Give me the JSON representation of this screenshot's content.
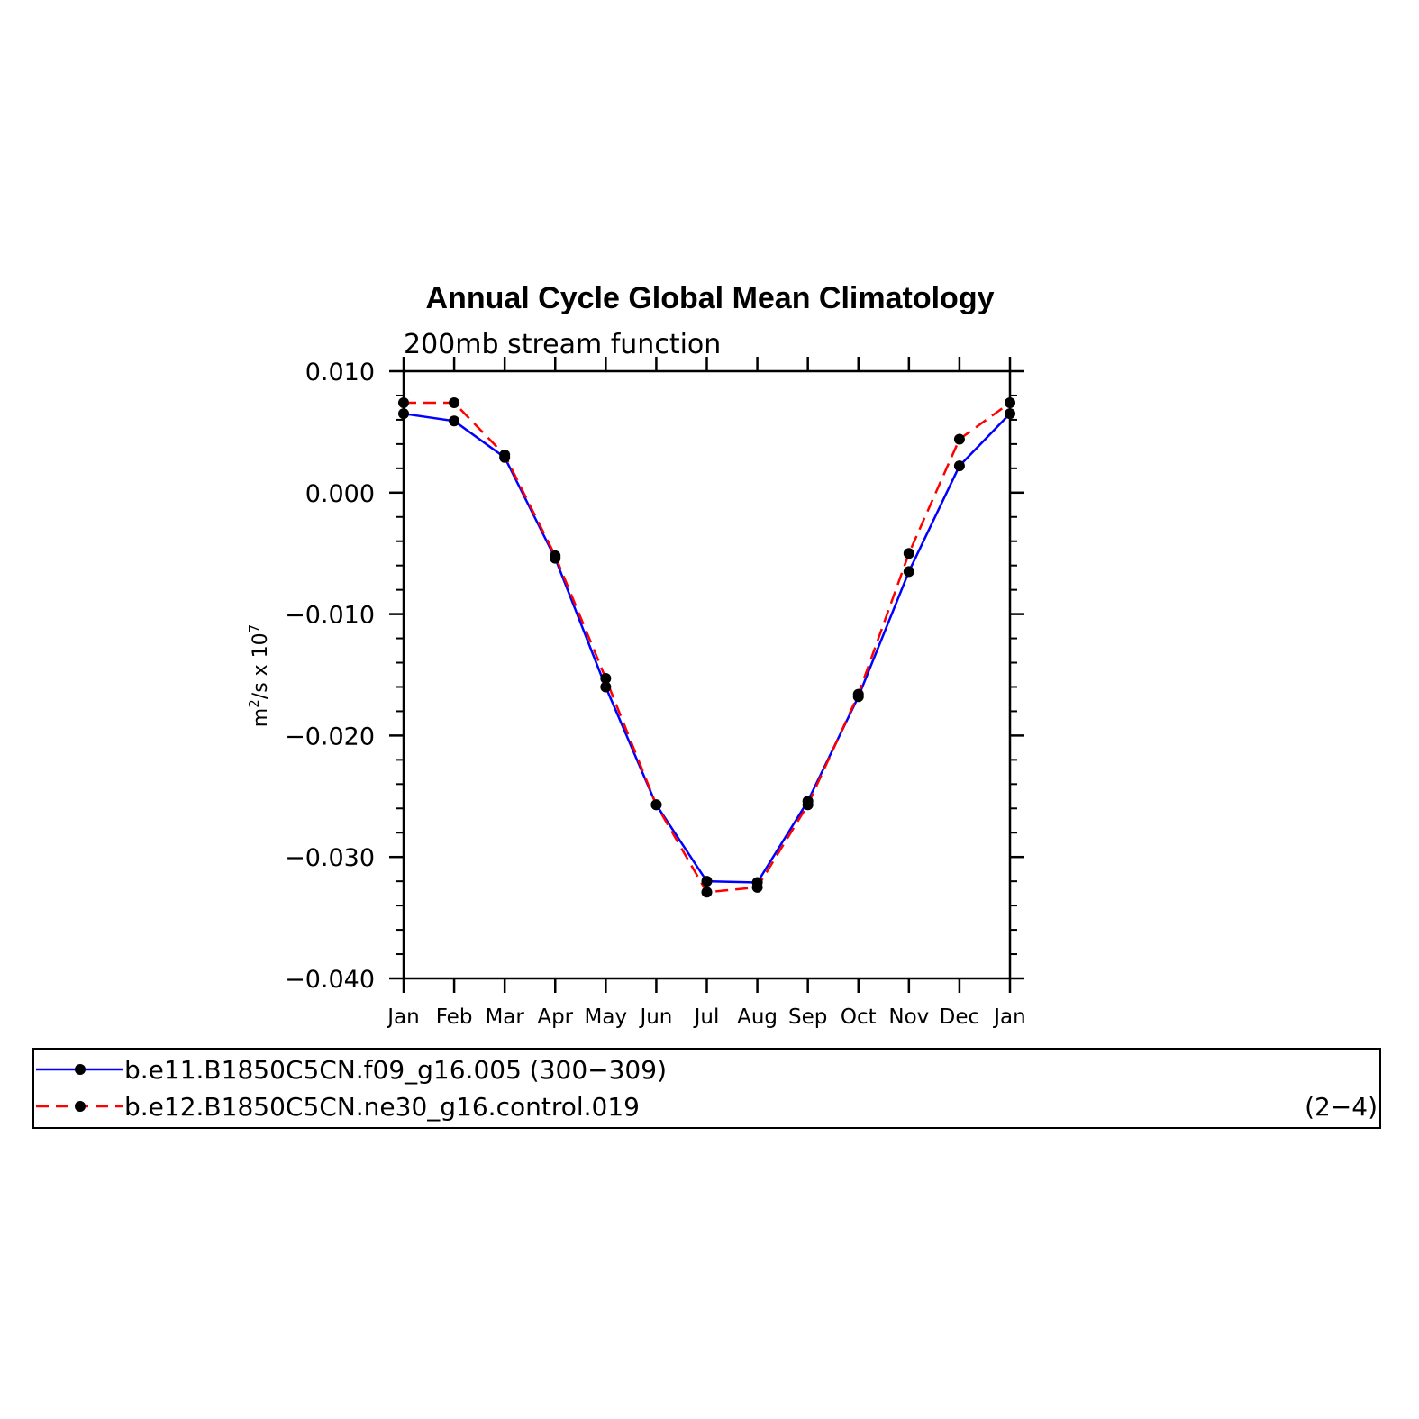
{
  "chart_data": {
    "type": "line",
    "title": "Annual Cycle Global Mean Climatology",
    "subtitle": "200mb stream function",
    "ylabel_base": "m",
    "ylabel_sup1": "2",
    "ylabel_mid": "/s x 10",
    "ylabel_sup2": "7",
    "ylim": [
      -0.04,
      0.01
    ],
    "yticks": [
      "0.010",
      "0.000",
      "−0.010",
      "−0.020",
      "−0.030",
      "−0.040"
    ],
    "ytick_values": [
      0.01,
      0.0,
      -0.01,
      -0.02,
      -0.03,
      -0.04
    ],
    "categories": [
      "Jan",
      "Feb",
      "Mar",
      "Apr",
      "May",
      "Jun",
      "Jul",
      "Aug",
      "Sep",
      "Oct",
      "Nov",
      "Dec",
      "Jan"
    ],
    "grid": false,
    "legend_position": "bottom",
    "series": [
      {
        "name": "b.e11.B1850C5CN.f09_g16.005 (300−309)",
        "color": "#0000ff",
        "dash": "solid",
        "values": [
          0.0065,
          0.0059,
          0.0029,
          -0.0054,
          -0.016,
          -0.0257,
          -0.032,
          -0.0321,
          -0.0254,
          -0.0168,
          -0.0065,
          0.0022,
          0.0065
        ]
      },
      {
        "name": "b.e12.B1850C5CN.ne30_g16.control.019",
        "color": "#ff0000",
        "dash": "dashed",
        "values": [
          0.0074,
          0.0074,
          0.0031,
          -0.0052,
          -0.0153,
          -0.0257,
          -0.0329,
          -0.0325,
          -0.0257,
          -0.0166,
          -0.005,
          0.0044,
          0.0074
        ]
      }
    ],
    "legend_note": "(2−4)"
  }
}
